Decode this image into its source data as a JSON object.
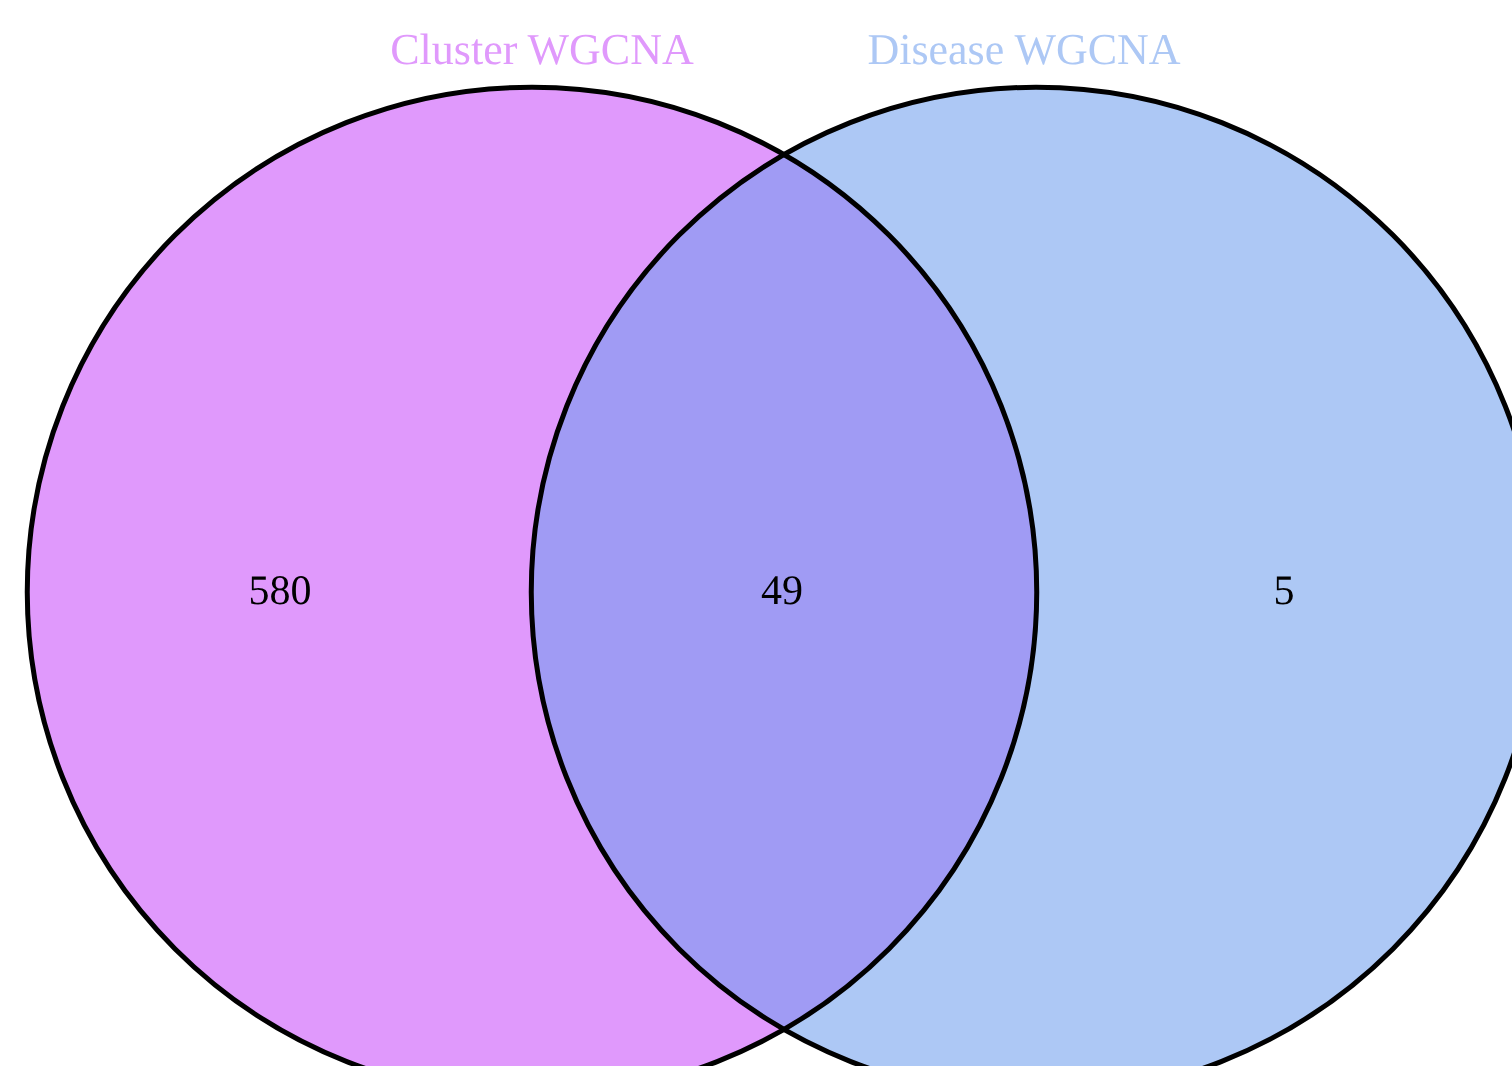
{
  "chart_data": {
    "type": "other",
    "annotations": [
      "Cluster WGCNA",
      "Disease WGCNA"
    ],
    "categories": [
      null,
      null,
      null
    ],
    "values": [
      580,
      49,
      5
    ],
    "colors": [
      "#e099fc",
      "#a09bf4",
      "#adc8f5"
    ],
    "data_labels": true
  }
}
